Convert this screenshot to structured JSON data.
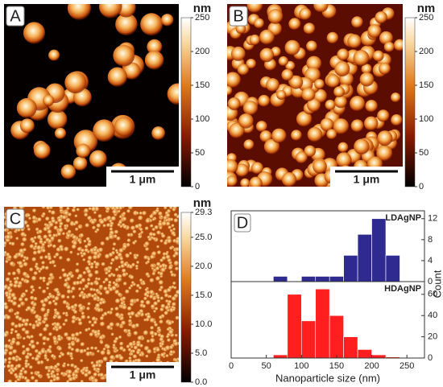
{
  "panels": [
    {
      "label": "A",
      "unit": "nm",
      "scale_bar": "1 μm",
      "colorbar": {
        "lim": [
          0,
          250
        ],
        "ticks": [
          0,
          50,
          100,
          150,
          200,
          250
        ]
      }
    },
    {
      "label": "B",
      "unit": "nm",
      "scale_bar": "1 μm",
      "colorbar": {
        "lim": [
          0,
          250
        ],
        "ticks": [
          0,
          50,
          100,
          150,
          200,
          250
        ]
      }
    },
    {
      "label": "C",
      "unit": "nm",
      "scale_bar": "1 μm",
      "colorbar": {
        "lim": [
          0,
          29.3
        ],
        "ticks": [
          {
            "value": 0,
            "label": "0.0"
          },
          {
            "value": 5,
            "label": "5.0"
          },
          {
            "value": 10,
            "label": "10.0"
          },
          {
            "value": 15,
            "label": "15.0"
          },
          {
            "value": 20,
            "label": "20.0"
          },
          {
            "value": 25,
            "label": "25.0"
          },
          29.3
        ]
      }
    }
  ],
  "chart_data": {
    "type": "histogram",
    "label": "D",
    "xlabel": "Nanoparticle size (nm)",
    "ylabel": "Count",
    "xlim": [
      0,
      275
    ],
    "xticks": [
      0,
      50,
      100,
      150,
      200,
      250
    ],
    "bins": [
      60,
      80,
      100,
      120,
      140,
      160,
      180,
      200,
      220,
      240
    ],
    "series": [
      {
        "name": "LDAgNP",
        "color": "#2f2a8f",
        "values": [
          1,
          0,
          1,
          1,
          1,
          5,
          9,
          12,
          5
        ],
        "ylim": [
          0,
          13.5
        ],
        "yticks": [
          0,
          4,
          8,
          12
        ]
      },
      {
        "name": "HDAgNP",
        "color": "#ff1f1f",
        "values": [
          3,
          60,
          35,
          65,
          40,
          20,
          8,
          3,
          1
        ],
        "ylim": [
          0,
          72
        ],
        "yticks": [
          0,
          20,
          40,
          60
        ]
      }
    ]
  }
}
